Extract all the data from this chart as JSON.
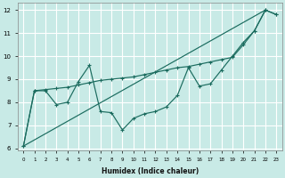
{
  "xlabel": "Humidex (Indice chaleur)",
  "bg_color": "#c8eae6",
  "grid_color": "#b0d8d2",
  "line_color": "#1a6b5e",
  "xlim": [
    -0.5,
    23.5
  ],
  "ylim": [
    5.9,
    12.3
  ],
  "yticks": [
    6,
    7,
    8,
    9,
    10,
    11,
    12
  ],
  "xticks": [
    0,
    1,
    2,
    3,
    4,
    5,
    6,
    7,
    8,
    9,
    10,
    11,
    12,
    13,
    14,
    15,
    16,
    17,
    18,
    19,
    20,
    21,
    22,
    23
  ],
  "line1_y": [
    6.1,
    8.5,
    8.5,
    7.9,
    8.0,
    8.9,
    9.6,
    7.6,
    7.55,
    6.8,
    7.3,
    7.5,
    7.6,
    7.8,
    8.3,
    9.5,
    8.7,
    8.8,
    9.4,
    10.0,
    10.6,
    11.1,
    12.0,
    11.8
  ],
  "line2_x": [
    0,
    1,
    2,
    3,
    4,
    5,
    6,
    7,
    8,
    9,
    10,
    11,
    12,
    13,
    14,
    15,
    16,
    17,
    18,
    19,
    20,
    21,
    22,
    23
  ],
  "line2_y": [
    6.1,
    8.5,
    8.55,
    8.6,
    8.65,
    8.75,
    8.85,
    8.95,
    9.0,
    9.05,
    9.1,
    9.2,
    9.3,
    9.4,
    9.5,
    9.55,
    9.65,
    9.75,
    9.85,
    9.95,
    10.5,
    11.1,
    12.0,
    11.8
  ],
  "line3_x": [
    0,
    22
  ],
  "line3_y": [
    6.1,
    12.0
  ]
}
